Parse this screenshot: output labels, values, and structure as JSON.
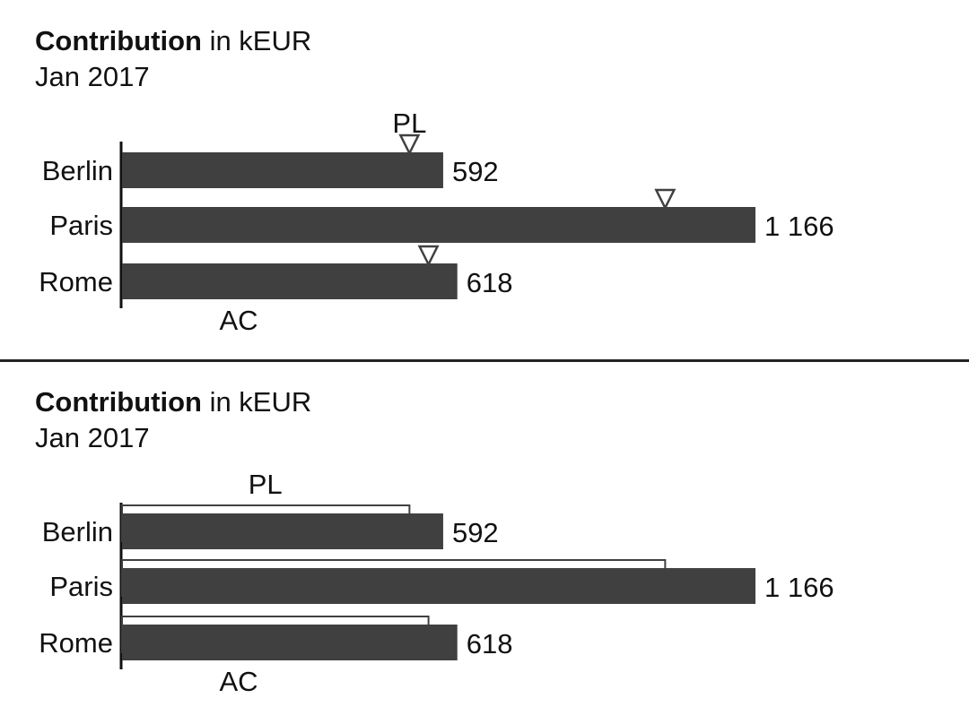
{
  "chart_data": [
    {
      "type": "bar",
      "variant": "triangle-markers",
      "title_bold": "Contribution",
      "title_rest": " in kEUR",
      "subtitle": "Jan 2017",
      "categories": [
        "Berlin",
        "Paris",
        "Rome"
      ],
      "series": [
        {
          "name": "AC",
          "values": [
            592,
            1166,
            618
          ],
          "value_labels": [
            "592",
            "1 166",
            "618"
          ]
        },
        {
          "name": "PL",
          "values": [
            530,
            1000,
            565
          ]
        }
      ],
      "xlim": [
        0,
        1166
      ],
      "colors": {
        "bar": "#404040",
        "marker": "#404040"
      }
    },
    {
      "type": "bar",
      "variant": "outlined-bars",
      "title_bold": "Contribution",
      "title_rest": " in kEUR",
      "subtitle": "Jan 2017",
      "categories": [
        "Berlin",
        "Paris",
        "Rome"
      ],
      "series": [
        {
          "name": "AC",
          "values": [
            592,
            1166,
            618
          ],
          "value_labels": [
            "592",
            "1 166",
            "618"
          ]
        },
        {
          "name": "PL",
          "values": [
            530,
            1000,
            565
          ]
        }
      ],
      "xlim": [
        0,
        1166
      ],
      "colors": {
        "bar": "#404040",
        "outline": "#404040"
      }
    }
  ]
}
